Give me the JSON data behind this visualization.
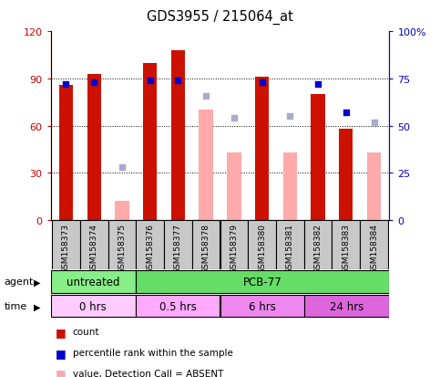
{
  "title": "GDS3955 / 215064_at",
  "samples": [
    "GSM158373",
    "GSM158374",
    "GSM158375",
    "GSM158376",
    "GSM158377",
    "GSM158378",
    "GSM158379",
    "GSM158380",
    "GSM158381",
    "GSM158382",
    "GSM158383",
    "GSM158384"
  ],
  "count_values": [
    86,
    93,
    null,
    100,
    108,
    null,
    null,
    91,
    null,
    80,
    58,
    null
  ],
  "absent_values": [
    null,
    null,
    12,
    null,
    null,
    70,
    43,
    null,
    43,
    null,
    null,
    43
  ],
  "rank_present": [
    72,
    73,
    null,
    74,
    74,
    null,
    null,
    73,
    null,
    72,
    57,
    null
  ],
  "rank_absent": [
    null,
    null,
    28,
    null,
    null,
    66,
    54,
    null,
    55,
    null,
    null,
    52
  ],
  "ylim_left": [
    0,
    120
  ],
  "ylim_right": [
    0,
    100
  ],
  "yticks_left": [
    0,
    30,
    60,
    90,
    120
  ],
  "yticks_right": [
    0,
    25,
    50,
    75,
    100
  ],
  "ytick_labels_left": [
    "0",
    "30",
    "60",
    "90",
    "120"
  ],
  "ytick_labels_right": [
    "0",
    "25",
    "50",
    "75",
    "100%"
  ],
  "bar_color_present": "#cc1100",
  "bar_color_absent": "#ffaaaa",
  "rank_color_present": "#0000cc",
  "rank_color_absent": "#aaaacc",
  "label_bg_color": "#c8c8c8",
  "agent_untreated_color": "#88ee88",
  "agent_pcb_color": "#66dd66",
  "time_color_0": "#ffccff",
  "time_color_05": "#ffaaff",
  "time_color_6": "#ee88ee",
  "time_color_24": "#dd66dd",
  "left_axis_color": "#cc0000",
  "right_axis_color": "#0000cc"
}
